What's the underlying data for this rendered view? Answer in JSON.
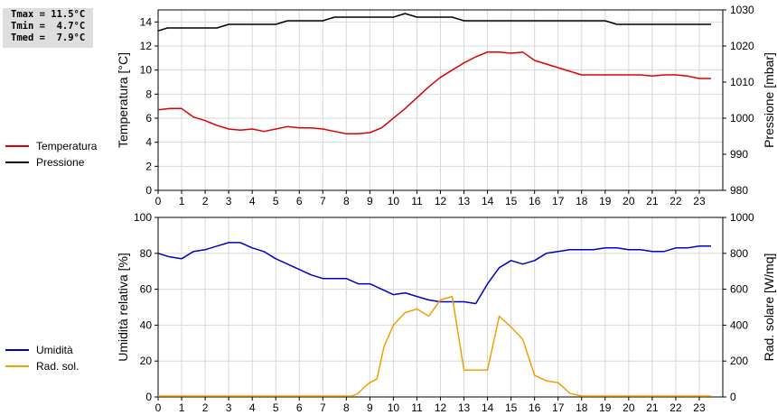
{
  "stats": {
    "tmax": "Tmax = 11.5°C",
    "tmin": "Tmin =  4.7°C",
    "tmed": "Tmed =  7.9°C"
  },
  "legend_top": [
    {
      "label": "Temperatura",
      "color": "#dd0000"
    },
    {
      "label": "Pressione",
      "color": "#000000"
    }
  ],
  "legend_bottom": [
    {
      "label": "Umidità",
      "color": "#0000c8"
    },
    {
      "label": "Rad. sol.",
      "color": "#f0a000"
    }
  ],
  "chart_data": [
    {
      "type": "line",
      "xlim": [
        0,
        24
      ],
      "x_ticks": [
        "0",
        "1",
        "2",
        "3",
        "4",
        "5",
        "6",
        "7",
        "8",
        "9",
        "10",
        "11",
        "12",
        "13",
        "14",
        "15",
        "16",
        "17",
        "18",
        "19",
        "20",
        "21",
        "22",
        "23"
      ],
      "ylabel": "Temperatura [°C]",
      "ylim": [
        0,
        15
      ],
      "y_ticks": [
        "0",
        "2",
        "4",
        "6",
        "8",
        "10",
        "12",
        "14"
      ],
      "y2label": "Pressione [mbar]",
      "y2lim": [
        980,
        1030
      ],
      "y2_ticks": [
        "980",
        "990",
        "1000",
        "1010",
        "1020",
        "1030"
      ],
      "grid": true,
      "series": [
        {
          "name": "Temperatura",
          "axis": "left",
          "color": "#dd0000",
          "x": [
            0,
            0.5,
            1,
            1.5,
            2,
            2.5,
            3,
            3.5,
            4,
            4.5,
            5,
            5.5,
            6,
            6.5,
            7,
            7.5,
            8,
            8.5,
            9,
            9.5,
            10,
            10.5,
            11,
            11.5,
            12,
            12.5,
            13,
            13.5,
            14,
            14.5,
            15,
            15.5,
            16,
            16.5,
            17,
            17.5,
            18,
            18.5,
            19,
            19.5,
            20,
            20.5,
            21,
            21.5,
            22,
            22.5,
            23,
            23.5
          ],
          "values": [
            6.7,
            6.8,
            6.8,
            6.1,
            5.8,
            5.4,
            5.1,
            5.0,
            5.1,
            4.9,
            5.1,
            5.3,
            5.2,
            5.2,
            5.1,
            4.9,
            4.7,
            4.7,
            4.8,
            5.2,
            6.0,
            6.8,
            7.7,
            8.6,
            9.4,
            10.0,
            10.6,
            11.1,
            11.5,
            11.5,
            11.4,
            11.5,
            10.8,
            10.5,
            10.2,
            9.9,
            9.6,
            9.6,
            9.6,
            9.6,
            9.6,
            9.6,
            9.5,
            9.6,
            9.6,
            9.5,
            9.3,
            9.3
          ]
        },
        {
          "name": "Pressione",
          "axis": "right",
          "color": "#000000",
          "x": [
            0,
            0.4,
            1,
            1.5,
            2,
            2.5,
            3,
            3.5,
            4,
            4.5,
            5,
            5.5,
            6,
            6.5,
            7,
            7.5,
            8,
            8.5,
            9,
            9.5,
            10,
            10.5,
            11,
            11.5,
            12,
            12.5,
            13,
            13.5,
            14,
            14.5,
            15,
            15.5,
            16,
            16.5,
            17,
            17.5,
            18,
            18.5,
            19,
            19.5,
            20,
            20.5,
            21,
            21.5,
            22,
            22.5,
            23,
            23.5
          ],
          "values": [
            1024.2,
            1025.0,
            1025.0,
            1025.0,
            1025.0,
            1025.0,
            1026.0,
            1026.0,
            1026.0,
            1026.0,
            1026.0,
            1027.0,
            1027.0,
            1027.0,
            1027.0,
            1028.0,
            1028.0,
            1028.0,
            1028.0,
            1028.0,
            1028.0,
            1029.0,
            1028.0,
            1028.0,
            1028.0,
            1028.0,
            1027.0,
            1027.0,
            1027.0,
            1027.0,
            1027.0,
            1027.0,
            1027.0,
            1027.0,
            1027.0,
            1027.0,
            1027.0,
            1027.0,
            1027.0,
            1026.0,
            1026.0,
            1026.0,
            1026.0,
            1026.0,
            1026.0,
            1026.0,
            1026.0,
            1026.0
          ]
        }
      ]
    },
    {
      "type": "line",
      "xlim": [
        0,
        24
      ],
      "x_ticks": [
        "0",
        "1",
        "2",
        "3",
        "4",
        "5",
        "6",
        "7",
        "8",
        "9",
        "10",
        "11",
        "12",
        "13",
        "14",
        "15",
        "16",
        "17",
        "18",
        "19",
        "20",
        "21",
        "22",
        "23"
      ],
      "ylabel": "Umidità relativa [%]",
      "ylim": [
        0,
        100
      ],
      "y_ticks": [
        "0",
        "20",
        "40",
        "60",
        "80",
        "100"
      ],
      "y2label": "Rad. solare [W/mq]",
      "y2lim": [
        0,
        1000
      ],
      "y2_ticks": [
        "0",
        "200",
        "400",
        "600",
        "800",
        "1000"
      ],
      "grid": true,
      "series": [
        {
          "name": "Umidità",
          "axis": "left",
          "color": "#0000c8",
          "x": [
            0,
            0.5,
            1,
            1.5,
            2,
            2.5,
            3,
            3.5,
            4,
            4.5,
            5,
            5.5,
            6,
            6.5,
            7,
            7.5,
            8,
            8.5,
            9,
            9.5,
            10,
            10.5,
            11,
            11.5,
            12,
            12.5,
            13,
            13.5,
            14,
            14.5,
            15,
            15.5,
            16,
            16.5,
            17,
            17.5,
            18,
            18.5,
            19,
            19.5,
            20,
            20.5,
            21,
            21.5,
            22,
            22.5,
            23,
            23.5
          ],
          "values": [
            80,
            78,
            77,
            81,
            82,
            84,
            86,
            86,
            83,
            81,
            77,
            74,
            71,
            68,
            66,
            66,
            66,
            63,
            63,
            60,
            57,
            58,
            56,
            54,
            53,
            53,
            53,
            52,
            63,
            72,
            76,
            74,
            76,
            80,
            81,
            82,
            82,
            82,
            83,
            83,
            82,
            82,
            81,
            81,
            83,
            83,
            84,
            84
          ]
        },
        {
          "name": "Rad. sol.",
          "axis": "right",
          "color": "#f0a000",
          "x": [
            0,
            0.5,
            1,
            1.5,
            2,
            2.5,
            3,
            3.5,
            4,
            4.5,
            5,
            5.5,
            6,
            6.5,
            7,
            7.5,
            8,
            8.25,
            8.5,
            8.8,
            9,
            9.3,
            9.6,
            10,
            10.5,
            11,
            11.5,
            12,
            12.5,
            13,
            13.5,
            14,
            14.5,
            15,
            15.5,
            16,
            16.5,
            17,
            17.5,
            18,
            18.5,
            19,
            19.5,
            20,
            20.5,
            21,
            21.5,
            22,
            22.5,
            23,
            23.5
          ],
          "values": [
            5,
            5,
            5,
            5,
            5,
            5,
            5,
            5,
            5,
            5,
            5,
            5,
            5,
            5,
            5,
            5,
            5,
            5,
            20,
            60,
            80,
            100,
            280,
            400,
            470,
            490,
            450,
            540,
            560,
            150,
            150,
            150,
            450,
            390,
            320,
            120,
            90,
            80,
            20,
            5,
            5,
            5,
            5,
            5,
            5,
            5,
            5,
            5,
            5,
            5,
            5
          ]
        }
      ]
    }
  ]
}
